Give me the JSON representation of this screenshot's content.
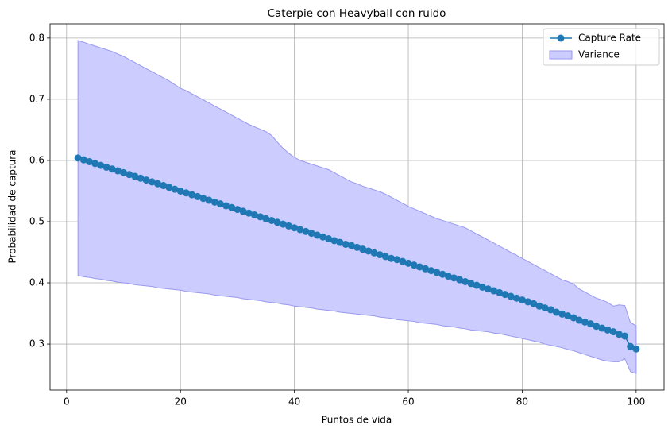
{
  "chart_data": {
    "type": "line_band",
    "title": "Caterpie con Heavyball con ruido",
    "xlabel": "Puntos de vida",
    "ylabel": "Probabilidad de captura",
    "x": [
      2,
      3,
      4,
      5,
      6,
      7,
      8,
      9,
      10,
      11,
      12,
      13,
      14,
      15,
      16,
      17,
      18,
      19,
      20,
      21,
      22,
      23,
      24,
      25,
      26,
      27,
      28,
      29,
      30,
      31,
      32,
      33,
      34,
      35,
      36,
      37,
      38,
      39,
      40,
      41,
      42,
      43,
      44,
      45,
      46,
      47,
      48,
      49,
      50,
      51,
      52,
      53,
      54,
      55,
      56,
      57,
      58,
      59,
      60,
      61,
      62,
      63,
      64,
      65,
      66,
      67,
      68,
      69,
      70,
      71,
      72,
      73,
      74,
      75,
      76,
      77,
      78,
      79,
      80,
      81,
      82,
      83,
      84,
      85,
      86,
      87,
      88,
      89,
      90,
      91,
      92,
      93,
      94,
      95,
      96,
      97,
      98,
      99,
      100
    ],
    "series": [
      {
        "name": "Capture Rate",
        "color": "#1f77b4",
        "values": [
          0.604,
          0.601,
          0.598,
          0.595,
          0.592,
          0.589,
          0.586,
          0.583,
          0.58,
          0.577,
          0.574,
          0.571,
          0.568,
          0.565,
          0.562,
          0.559,
          0.556,
          0.553,
          0.55,
          0.547,
          0.544,
          0.541,
          0.538,
          0.535,
          0.532,
          0.529,
          0.526,
          0.523,
          0.52,
          0.517,
          0.514,
          0.511,
          0.508,
          0.505,
          0.502,
          0.499,
          0.496,
          0.493,
          0.49,
          0.487,
          0.484,
          0.481,
          0.478,
          0.475,
          0.472,
          0.469,
          0.466,
          0.463,
          0.461,
          0.458,
          0.455,
          0.452,
          0.449,
          0.446,
          0.443,
          0.44,
          0.438,
          0.435,
          0.432,
          0.429,
          0.426,
          0.423,
          0.42,
          0.417,
          0.414,
          0.411,
          0.408,
          0.405,
          0.402,
          0.399,
          0.396,
          0.393,
          0.39,
          0.387,
          0.384,
          0.381,
          0.378,
          0.375,
          0.372,
          0.369,
          0.366,
          0.362,
          0.359,
          0.356,
          0.352,
          0.349,
          0.346,
          0.343,
          0.339,
          0.336,
          0.333,
          0.329,
          0.326,
          0.323,
          0.32,
          0.316,
          0.313,
          0.296,
          0.292
        ]
      },
      {
        "name": "Variance",
        "color": "#ccccff",
        "edge": "#9999ee",
        "upper": [
          0.796,
          0.793,
          0.79,
          0.787,
          0.784,
          0.781,
          0.778,
          0.774,
          0.77,
          0.765,
          0.76,
          0.755,
          0.75,
          0.745,
          0.74,
          0.735,
          0.73,
          0.724,
          0.718,
          0.714,
          0.709,
          0.704,
          0.699,
          0.694,
          0.689,
          0.684,
          0.679,
          0.674,
          0.669,
          0.664,
          0.659,
          0.655,
          0.651,
          0.647,
          0.641,
          0.63,
          0.62,
          0.612,
          0.605,
          0.6,
          0.597,
          0.594,
          0.591,
          0.588,
          0.585,
          0.58,
          0.575,
          0.57,
          0.565,
          0.562,
          0.558,
          0.555,
          0.552,
          0.549,
          0.545,
          0.54,
          0.535,
          0.53,
          0.525,
          0.521,
          0.517,
          0.513,
          0.509,
          0.505,
          0.502,
          0.499,
          0.496,
          0.493,
          0.49,
          0.485,
          0.48,
          0.475,
          0.47,
          0.465,
          0.46,
          0.455,
          0.45,
          0.445,
          0.44,
          0.435,
          0.43,
          0.425,
          0.42,
          0.415,
          0.41,
          0.405,
          0.402,
          0.398,
          0.39,
          0.385,
          0.38,
          0.375,
          0.372,
          0.368,
          0.362,
          0.364,
          0.363,
          0.335,
          0.33
        ],
        "lower": [
          0.412,
          0.41,
          0.409,
          0.407,
          0.406,
          0.404,
          0.403,
          0.401,
          0.4,
          0.399,
          0.397,
          0.396,
          0.395,
          0.394,
          0.392,
          0.391,
          0.39,
          0.389,
          0.388,
          0.386,
          0.385,
          0.384,
          0.383,
          0.382,
          0.38,
          0.379,
          0.378,
          0.377,
          0.376,
          0.374,
          0.373,
          0.372,
          0.371,
          0.369,
          0.368,
          0.367,
          0.365,
          0.364,
          0.362,
          0.361,
          0.36,
          0.359,
          0.357,
          0.356,
          0.355,
          0.354,
          0.352,
          0.351,
          0.35,
          0.349,
          0.348,
          0.347,
          0.346,
          0.344,
          0.343,
          0.342,
          0.34,
          0.339,
          0.338,
          0.337,
          0.335,
          0.334,
          0.333,
          0.332,
          0.33,
          0.329,
          0.328,
          0.326,
          0.325,
          0.323,
          0.322,
          0.321,
          0.32,
          0.318,
          0.317,
          0.315,
          0.313,
          0.311,
          0.309,
          0.307,
          0.305,
          0.303,
          0.3,
          0.298,
          0.296,
          0.294,
          0.291,
          0.289,
          0.286,
          0.283,
          0.28,
          0.277,
          0.274,
          0.272,
          0.271,
          0.271,
          0.276,
          0.255,
          0.252
        ]
      }
    ],
    "xlim": [
      -2.9,
      104.9
    ],
    "xticks": [
      0,
      20,
      40,
      60,
      80,
      100
    ],
    "ylim": [
      0.2248,
      0.8232
    ],
    "yticks": [
      0.3,
      0.4,
      0.5,
      0.6,
      0.7,
      0.8
    ],
    "grid": true,
    "legend": "upper right"
  }
}
